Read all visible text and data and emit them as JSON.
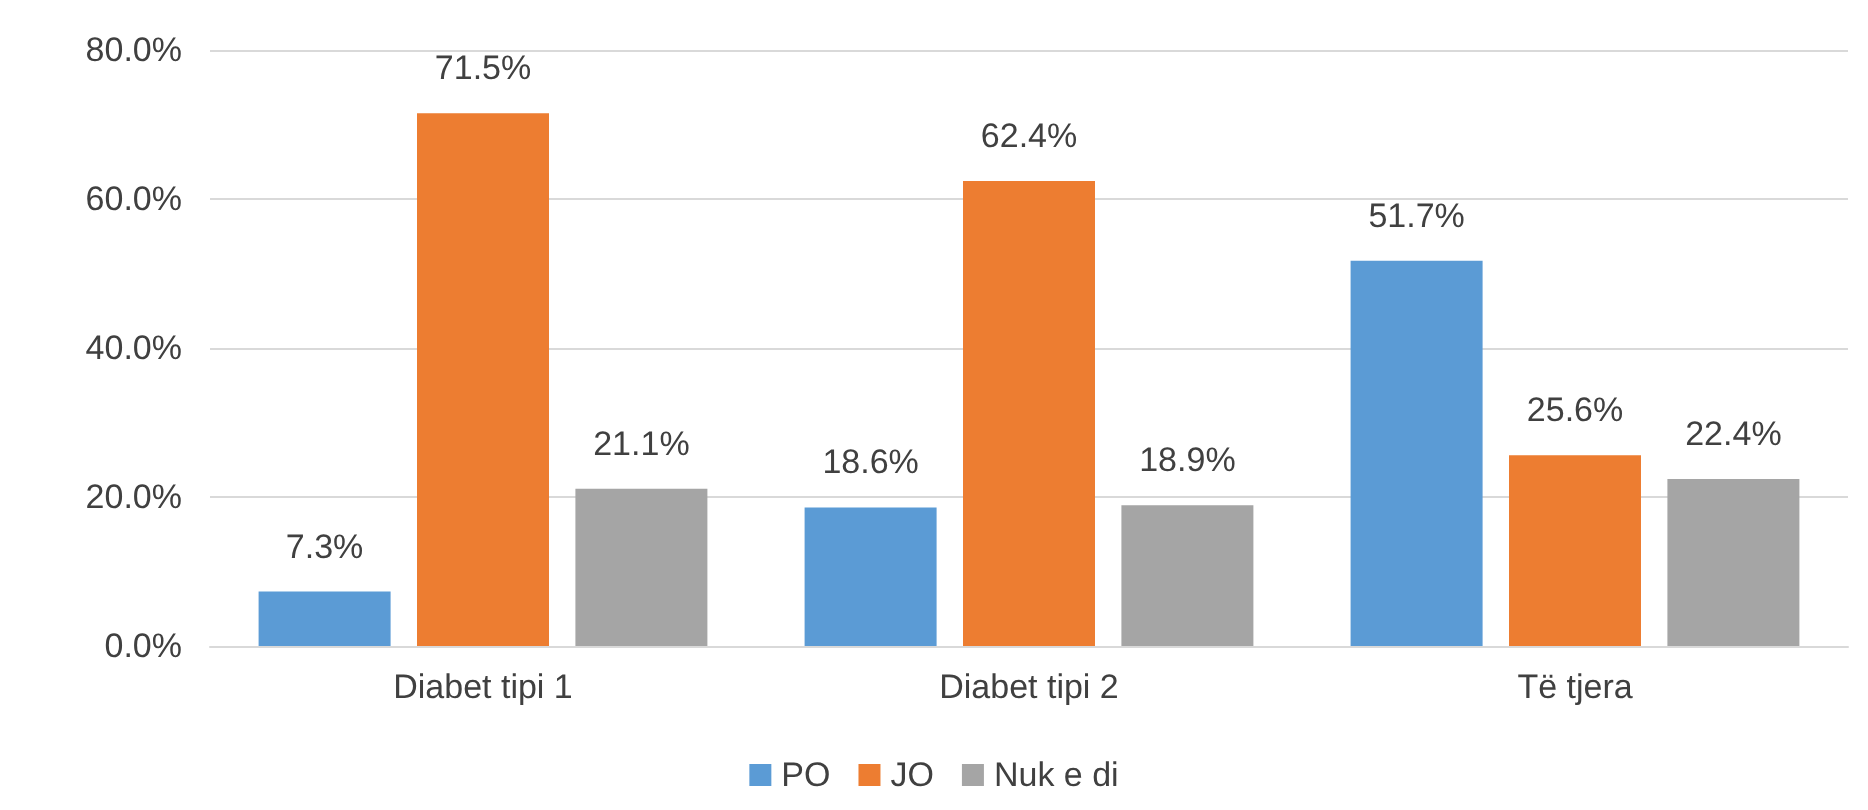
{
  "chart_data": {
    "type": "bar",
    "categories": [
      "Diabet tipi 1",
      "Diabet tipi 2",
      "Të tjera"
    ],
    "series": [
      {
        "name": "PO",
        "color": "#5b9bd5",
        "values": [
          7.3,
          18.6,
          51.7
        ],
        "value_labels": [
          "7.3%",
          "18.6%",
          "51.7%"
        ]
      },
      {
        "name": "JO",
        "color": "#ed7d31",
        "values": [
          71.5,
          62.4,
          25.6
        ],
        "value_labels": [
          "71.5%",
          "62.4%",
          "25.6%"
        ]
      },
      {
        "name": "Nuk e di",
        "color": "#a5a5a5",
        "values": [
          21.1,
          18.9,
          22.4
        ],
        "value_labels": [
          "21.1%",
          "18.9%",
          "22.4%"
        ]
      }
    ],
    "ylim": [
      0,
      80
    ],
    "yticks": [
      {
        "value": 0,
        "label": "0.0%"
      },
      {
        "value": 20,
        "label": "20.0%"
      },
      {
        "value": 40,
        "label": "40.0%"
      },
      {
        "value": 60,
        "label": "60.0%"
      },
      {
        "value": 80,
        "label": "80.0%"
      }
    ],
    "grid": "y",
    "legend": "bottom"
  }
}
